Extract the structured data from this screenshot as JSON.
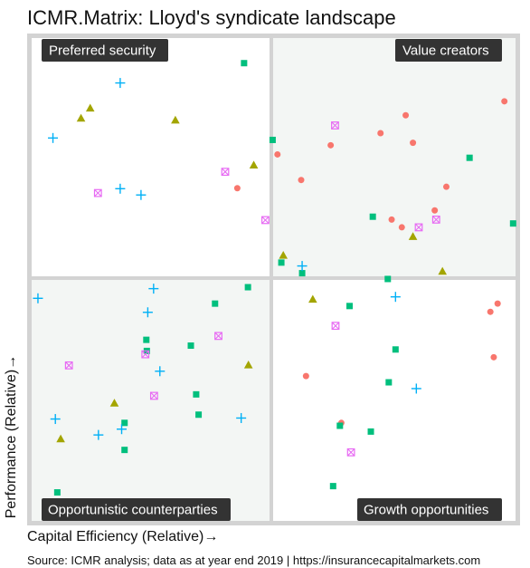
{
  "title": "ICMR.Matrix: Lloyd's syndicate landscape",
  "xlabel": "Capital Efficiency (Relative)→",
  "ylabel": "Performance (Relative)→",
  "source": "Source: ICMR analysis; data as at year end 2019 | https://insurancecapitalmarkets.com",
  "chart_data": {
    "type": "scatter",
    "title": "ICMR.Matrix: Lloyd's syndicate landscape",
    "xlabel": "Capital Efficiency (Relative)→",
    "ylabel": "Performance (Relative)→",
    "xlim": [
      0,
      1
    ],
    "ylim": [
      0,
      1
    ],
    "grid": false,
    "legend": "none",
    "quadrants": {
      "top_left": "Preferred security",
      "top_right": "Value creators",
      "bottom_left": "Opportunistic counterparties",
      "bottom_right": "Growth opportunities"
    },
    "quadrant_fills": {
      "top_left": "#ffffff",
      "top_right": "#f3f6f4",
      "bottom_left": "#f3f6f4",
      "bottom_right": "#ffffff"
    },
    "frame_color": "#d3d3d3",
    "label_bg": "#333333",
    "series": [
      {
        "marker": "circle",
        "color": "#f8766d",
        "points": [
          [
            0.977,
            0.869
          ],
          [
            0.773,
            0.84
          ],
          [
            0.721,
            0.803
          ],
          [
            0.788,
            0.783
          ],
          [
            0.618,
            0.778
          ],
          [
            0.508,
            0.759
          ],
          [
            0.857,
            0.692
          ],
          [
            0.557,
            0.706
          ],
          [
            0.425,
            0.689
          ],
          [
            0.833,
            0.643
          ],
          [
            0.765,
            0.608
          ],
          [
            0.744,
            0.624
          ],
          [
            0.963,
            0.45
          ],
          [
            0.948,
            0.433
          ],
          [
            0.955,
            0.339
          ],
          [
            0.567,
            0.3
          ],
          [
            0.64,
            0.203
          ]
        ]
      },
      {
        "marker": "triangle",
        "color": "#a3a500",
        "points": [
          [
            0.121,
            0.855
          ],
          [
            0.102,
            0.834
          ],
          [
            0.297,
            0.83
          ],
          [
            0.459,
            0.737
          ],
          [
            0.788,
            0.589
          ],
          [
            0.52,
            0.55
          ],
          [
            0.849,
            0.517
          ],
          [
            0.581,
            0.459
          ],
          [
            0.448,
            0.323
          ],
          [
            0.171,
            0.244
          ],
          [
            0.06,
            0.17
          ]
        ]
      },
      {
        "marker": "square",
        "color": "#00bf7d",
        "points": [
          [
            0.439,
            0.948
          ],
          [
            0.498,
            0.789
          ],
          [
            0.905,
            0.752
          ],
          [
            0.705,
            0.63
          ],
          [
            0.995,
            0.616
          ],
          [
            0.516,
            0.535
          ],
          [
            0.559,
            0.513
          ],
          [
            0.736,
            0.501
          ],
          [
            0.447,
            0.484
          ],
          [
            0.379,
            0.45
          ],
          [
            0.657,
            0.445
          ],
          [
            0.237,
            0.375
          ],
          [
            0.238,
            0.352
          ],
          [
            0.329,
            0.363
          ],
          [
            0.752,
            0.355
          ],
          [
            0.738,
            0.287
          ],
          [
            0.34,
            0.262
          ],
          [
            0.345,
            0.22
          ],
          [
            0.192,
            0.203
          ],
          [
            0.637,
            0.197
          ],
          [
            0.192,
            0.147
          ],
          [
            0.701,
            0.185
          ],
          [
            0.623,
            0.072
          ],
          [
            0.053,
            0.059
          ]
        ]
      },
      {
        "marker": "plus",
        "color": "#00b0f6",
        "points": [
          [
            0.183,
            0.907
          ],
          [
            0.044,
            0.793
          ],
          [
            0.183,
            0.688
          ],
          [
            0.226,
            0.675
          ],
          [
            0.559,
            0.528
          ],
          [
            0.252,
            0.481
          ],
          [
            0.013,
            0.461
          ],
          [
            0.24,
            0.432
          ],
          [
            0.752,
            0.464
          ],
          [
            0.795,
            0.274
          ],
          [
            0.265,
            0.31
          ],
          [
            0.433,
            0.213
          ],
          [
            0.049,
            0.211
          ],
          [
            0.138,
            0.178
          ],
          [
            0.186,
            0.19
          ]
        ]
      },
      {
        "marker": "boxcross",
        "color": "#e76bf3",
        "points": [
          [
            0.627,
            0.819
          ],
          [
            0.4,
            0.723
          ],
          [
            0.137,
            0.679
          ],
          [
            0.483,
            0.623
          ],
          [
            0.836,
            0.624
          ],
          [
            0.8,
            0.608
          ],
          [
            0.628,
            0.404
          ],
          [
            0.386,
            0.383
          ],
          [
            0.235,
            0.345
          ],
          [
            0.077,
            0.322
          ],
          [
            0.253,
            0.259
          ],
          [
            0.66,
            0.142
          ]
        ]
      }
    ]
  }
}
